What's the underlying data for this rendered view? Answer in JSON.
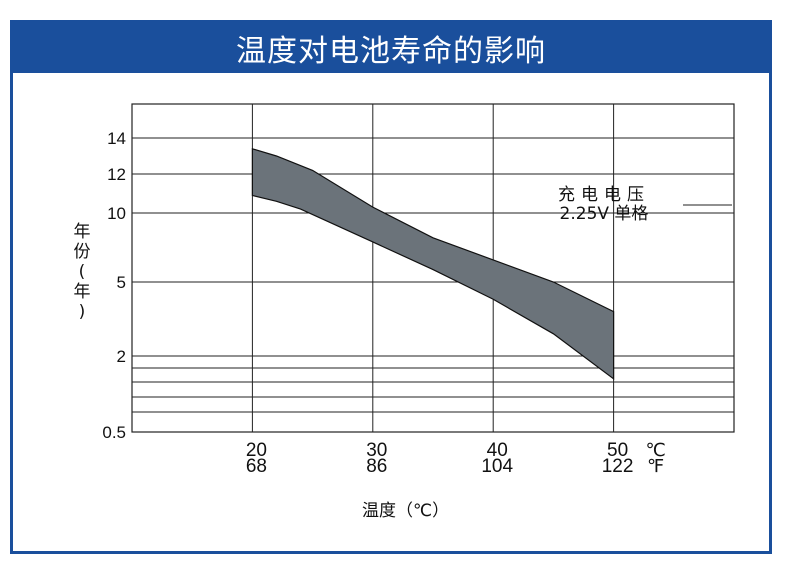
{
  "title": "温度对电池寿命的影响",
  "chart_data": {
    "type": "area",
    "ylabel": "年份(年)",
    "xlabel": "温度（℃）",
    "y_ticks": [
      14,
      12,
      10,
      5,
      2,
      0.5
    ],
    "y_scale": "nonlinear (log-like)",
    "x_ticks_c": [
      "20",
      "30",
      "40",
      "50"
    ],
    "x_ticks_f": [
      "68",
      "86",
      "104",
      "122"
    ],
    "unit_c": "℃",
    "unit_f": "℉",
    "xlim_c": [
      10,
      60
    ],
    "series": [
      {
        "upper": [
          [
            20,
            13.4
          ],
          [
            22,
            13.0
          ],
          [
            25,
            12.2
          ],
          [
            30,
            10.3
          ],
          [
            35,
            8.2
          ],
          [
            40,
            6.6
          ],
          [
            45,
            5.0
          ],
          [
            50,
            3.8
          ]
        ],
        "lower": [
          [
            20,
            10.9
          ],
          [
            22,
            10.6
          ],
          [
            24,
            10.2
          ],
          [
            30,
            7.9
          ],
          [
            35,
            5.9
          ],
          [
            40,
            4.3
          ],
          [
            45,
            2.9
          ],
          [
            50,
            1.55
          ]
        ]
      }
    ],
    "annotation": {
      "line1": "充电电压",
      "line2": "2.25V 单格"
    },
    "grid": true,
    "color": "#6b737a"
  }
}
